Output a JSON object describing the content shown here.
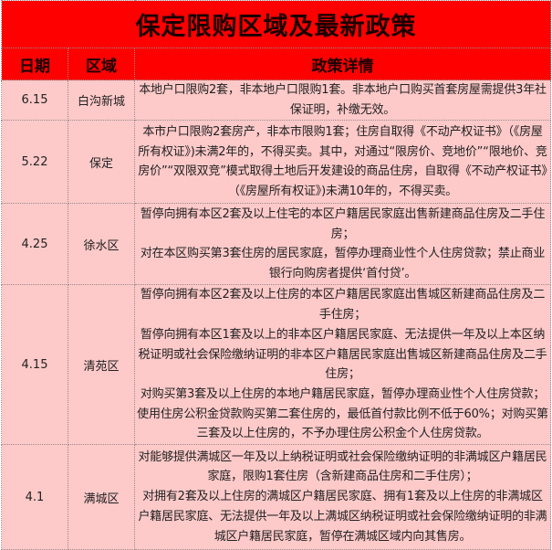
{
  "title": "保定限购区域及最新政策",
  "headers": {
    "date": "日期",
    "area": "区域",
    "detail": "政策详情"
  },
  "rows": [
    {
      "date": "6.15",
      "area": "白沟新城",
      "paragraphs": [
        "本地户口限购2套，非本地户口限购1套。非本地户口购买首套房屋需提供3年社保证明，补缴无效。"
      ]
    },
    {
      "date": "5.22",
      "area": "保定",
      "paragraphs": [
        "本市户口限购2套房产，非本市限购1套；住房自取得《不动产权证书》（《房屋所有权证》)未满2年的，不得买卖。其中，对通过“限房价、竞地价”“限地价、竞房价”“双限双竞”模式取得土地后开发建设的商品住房，自取得《不动产权证书》（《房屋所有权证》)未满10年的，不得买卖。"
      ]
    },
    {
      "date": "4.25",
      "area": "徐水区",
      "paragraphs": [
        "暂停向拥有本区2套及以上住宅的本区户籍居民家庭出售新建商品住房及二手住房；",
        "对在本区购买第3套住房的居民家庭，暂停办理商业性个人住房贷款；禁止商业银行向购房者提供‘首付贷’。"
      ]
    },
    {
      "date": "4.15",
      "area": "清苑区",
      "paragraphs": [
        "暂停向拥有本区2套及以上住房的本区户籍居民家庭出售城区新建商品住房及二手住房；",
        "暂停向拥有本区1套及以上的非本区户籍居民家庭、无法提供一年及以上本区纳税证明或社会保险缴纳证明的非本区户籍居民家庭出售城区新建商品住房及二手住房；",
        "对购买第3套及以上住房的本地户籍居民家庭，暂停办理商业性个人住房贷款；使用住房公积金贷款购买第二套住房的，最低首付款比例不低于60%；对购买第三套及以上住房的，不予办理住房公积金个人住房贷款。"
      ]
    },
    {
      "date": "4.1",
      "area": "满城区",
      "paragraphs": [
        "对能够提供满城区一年及以上纳税证明或社会保险缴纳证明的非满城区户籍居民家庭，限购1套住房（含新建商品住房和二手住房）；",
        "对拥有2套及以上住房的满城区户籍居民家庭、拥有1套及以上住房的非满城区户籍居民家庭、无法提供一年及以上满城区纳税证明或社会保险缴纳证明的非满城区户籍居民家庭，暂停在满城区域内向其售房。"
      ]
    }
  ],
  "colors": {
    "header_bg": "#fe0000",
    "cell_bg": "#fdc9c9"
  }
}
